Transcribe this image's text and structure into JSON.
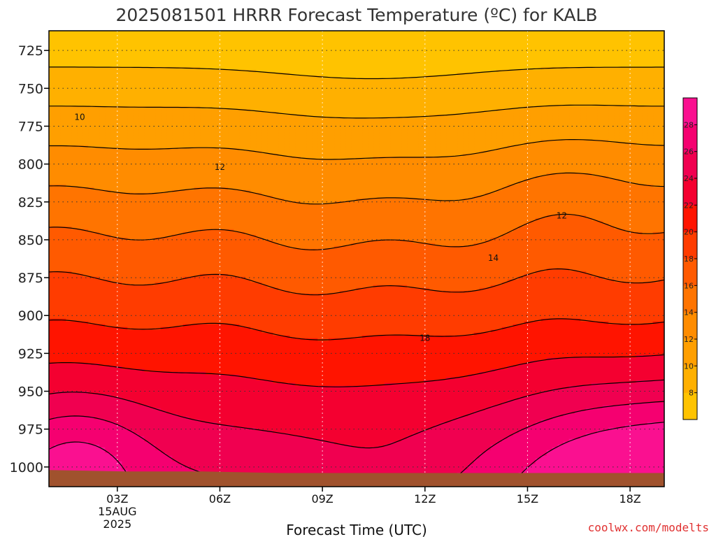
{
  "chart_data": {
    "type": "filled-contour",
    "title": "2025081501 HRRR Forecast Temperature (ºC) for KALB",
    "xlabel": "Forecast Time (UTC)",
    "ylabel": "",
    "y_axis": "pressure (hPa), inverted",
    "ylim": [
      1013,
      712
    ],
    "xlim": [
      1,
      19
    ],
    "x_ticks": [
      {
        "hour": 3,
        "label": "03Z",
        "sub1": "15AUG",
        "sub2": "2025"
      },
      {
        "hour": 6,
        "label": "06Z"
      },
      {
        "hour": 9,
        "label": "09Z"
      },
      {
        "hour": 12,
        "label": "12Z"
      },
      {
        "hour": 15,
        "label": "15Z"
      },
      {
        "hour": 18,
        "label": "18Z"
      }
    ],
    "y_ticks": [
      725,
      750,
      775,
      800,
      825,
      850,
      875,
      900,
      925,
      950,
      975,
      1000
    ],
    "grid": true,
    "colorbar": {
      "placement": "right",
      "min": 6,
      "max": 30,
      "ticks": [
        8,
        10,
        12,
        14,
        16,
        18,
        20,
        22,
        24,
        26,
        28
      ],
      "colors": [
        "#ffc300",
        "#ffb000",
        "#ff9f00",
        "#ff8c00",
        "#ff7400",
        "#ff5a00",
        "#ff3c00",
        "#ff1400",
        "#f40030",
        "#f00050",
        "#f50070",
        "#fa1090"
      ]
    },
    "contour_labels": [
      {
        "text": "10",
        "hour": 1.9,
        "p": 769
      },
      {
        "text": "12",
        "hour": 6.0,
        "p": 802
      },
      {
        "text": "12",
        "hour": 16.0,
        "p": 834
      },
      {
        "text": "14",
        "hour": 14.0,
        "p": 862
      },
      {
        "text": "18",
        "hour": 12.0,
        "p": 915
      }
    ],
    "ground_color": "#a0522d",
    "surface_pressure": [
      1002,
      1003,
      1003,
      1004,
      1004,
      1004,
      1004,
      1004,
      1004
    ]
  },
  "credit": "coolwx.com/modelts"
}
